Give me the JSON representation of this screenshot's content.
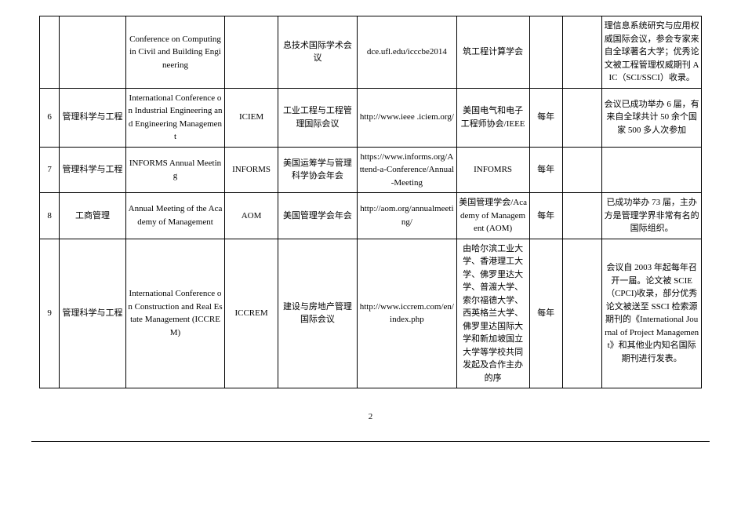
{
  "table": {
    "rows": [
      {
        "num": "",
        "field": "",
        "name": "Conference on Computing in Civil and Building Engineering",
        "abbr": "",
        "cn": "息技术国际学术会议",
        "url": "dce.ufl.edu/icccbe2014",
        "org": "筑工程计算学会",
        "freq": "",
        "desc": "理信息系统研究与应用权威国际会议，参会专家来自全球著名大学；优秀论文被工程管理权威期刊 AIC（SCI/SSCI）收录。"
      },
      {
        "num": "6",
        "field": "管理科学与工程",
        "name": "International Conference on Industrial Engineering and Engineering Management",
        "abbr": "ICIEM",
        "cn": "工业工程与工程管理国际会议",
        "url": "http://www.ieee .iciem.org/",
        "org": "美国电气和电子工程师协会/IEEE",
        "freq": "每年",
        "desc": "会议已成功举办 6 届，有来自全球共计 50 余个国家 500 多人次参加"
      },
      {
        "num": "7",
        "field": "管理科学与工程",
        "name": "INFORMS Annual Meeting",
        "abbr": "INFORMS",
        "cn": "美国运筹学与管理科学协会年会",
        "url": "https://www.informs.org/Attend-a-Conference/Annual-Meeting",
        "org": "INFOMRS",
        "freq": "每年",
        "desc": ""
      },
      {
        "num": "8",
        "field": "工商管理",
        "name": "Annual Meeting of the Academy of Management",
        "abbr": "AOM",
        "cn": "美国管理学会年会",
        "url": "http://aom.org/annualmeeting/",
        "org": "美国管理学会/Academy of Management (AOM)",
        "freq": "每年",
        "desc": "已成功举办 73 届，主办方是管理学界非常有名的国际组织。"
      },
      {
        "num": "9",
        "field": "管理科学与工程",
        "name": "International Conference on Construction and Real Estate Management (ICCREM)",
        "abbr": "ICCREM",
        "cn": "建设与房地产管理国际会议",
        "url": "http://www.iccrem.com/en/index.php",
        "org": "由哈尔滨工业大学、香港理工大学、佛罗里达大学、普渡大学、索尔福德大学、西英格兰大学、佛罗里达国际大学和新加坡国立大学等学校共同发起及合作主办的序",
        "freq": "每年",
        "desc": "会议自 2003 年起每年召开一届。论文被 SCIE（CPCI)收录，部分优秀论文被送至 SSCI 检索源期刊的《International Journal of Project Management》和其他业内知名国际期刊进行发表。"
      }
    ]
  },
  "page_number": "2"
}
